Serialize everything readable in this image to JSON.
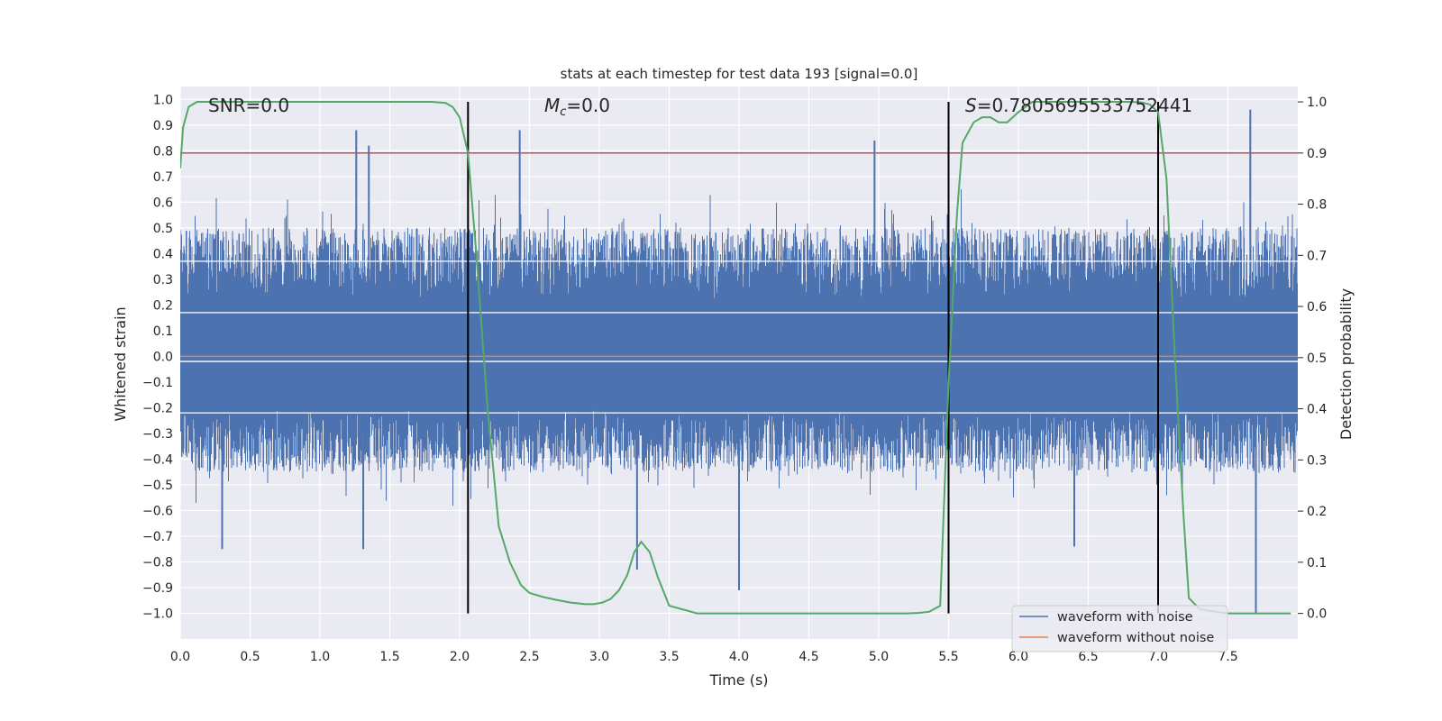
{
  "chart_data": {
    "type": "line",
    "title": "stats at each timestep for test data 193 [signal=0.0]",
    "xlabel": "Time (s)",
    "ylabel": "Whitened strain",
    "y2label": "Detection probability",
    "xlim": [
      0.0,
      8.0
    ],
    "ylim": [
      -1.1,
      1.05
    ],
    "y2lim": [
      -0.05,
      1.03
    ],
    "x_ticks": [
      0.0,
      0.5,
      1.0,
      1.5,
      2.0,
      2.5,
      3.0,
      3.5,
      4.0,
      4.5,
      5.0,
      5.5,
      6.0,
      6.5,
      7.0,
      7.5
    ],
    "x_tick_labels": [
      "0.0",
      "0.5",
      "1.0",
      "1.5",
      "2.0",
      "2.5",
      "3.0",
      "3.5",
      "4.0",
      "4.5",
      "5.0",
      "5.5",
      "6.0",
      "6.5",
      "7.0",
      "7.5"
    ],
    "y_ticks": [
      1.0,
      0.9,
      0.8,
      0.7,
      0.6,
      0.5,
      0.4,
      0.3,
      0.2,
      0.1,
      0.0,
      -0.1,
      -0.2,
      -0.3,
      -0.4,
      -0.5,
      -0.6,
      -0.7,
      -0.8,
      -0.9,
      -1.0
    ],
    "y_tick_labels": [
      "1.0",
      "0.9",
      "0.8",
      "0.7",
      "0.6",
      "0.5",
      "0.4",
      "0.3",
      "0.2",
      "0.1",
      "0.0",
      "−0.1",
      "−0.2",
      "−0.3",
      "−0.4",
      "−0.5",
      "−0.6",
      "−0.7",
      "−0.8",
      "−0.9",
      "−1.0"
    ],
    "y2_ticks": [
      1.0,
      0.9,
      0.8,
      0.7,
      0.6,
      0.5,
      0.4,
      0.3,
      0.2,
      0.1,
      0.0
    ],
    "y2_tick_labels": [
      "1.0",
      "0.9",
      "0.8",
      "0.7",
      "0.6",
      "0.5",
      "0.4",
      "0.3",
      "0.2",
      "0.1",
      "0.0"
    ],
    "grid": true,
    "annotations": {
      "snr": "SNR=0.0",
      "mc_symbol": "M",
      "mc_subscript": "c",
      "mc_value": "=0.0",
      "s_symbol": "S",
      "s_value": "=0.7805695533752441"
    },
    "noise": {
      "name": "waveform with noise",
      "color": "#4c72b0",
      "typical_range": [
        -0.45,
        0.5
      ],
      "spikes": [
        {
          "x": 1.26,
          "y": 0.88
        },
        {
          "x": 1.35,
          "y": 0.82
        },
        {
          "x": 2.43,
          "y": 0.88
        },
        {
          "x": 4.97,
          "y": 0.84
        },
        {
          "x": 7.66,
          "y": 0.96
        },
        {
          "x": 0.3,
          "y": -0.75
        },
        {
          "x": 1.31,
          "y": -0.75
        },
        {
          "x": 3.27,
          "y": -0.83
        },
        {
          "x": 4.0,
          "y": -0.91
        },
        {
          "x": 6.4,
          "y": -0.74
        },
        {
          "x": 7.7,
          "y": -1.0
        }
      ]
    },
    "clean_waveform": {
      "name": "waveform without noise",
      "color": "#dd8452",
      "value": 0.0
    },
    "threshold": {
      "color": "#c44e52",
      "value": 0.9
    },
    "event_markers": {
      "color": "#000000",
      "x": [
        2.06,
        5.5,
        7.0
      ]
    },
    "probability": {
      "color": "#55a868",
      "x": [
        0.0,
        0.02,
        0.06,
        0.12,
        0.25,
        0.5,
        1.0,
        1.5,
        1.8,
        1.9,
        1.95,
        2.0,
        2.06,
        2.12,
        2.2,
        2.28,
        2.36,
        2.44,
        2.5,
        2.6,
        2.7,
        2.8,
        2.9,
        2.96,
        3.02,
        3.08,
        3.14,
        3.2,
        3.25,
        3.3,
        3.36,
        3.42,
        3.5,
        3.7,
        4.0,
        4.5,
        5.0,
        5.2,
        5.28,
        5.36,
        5.44,
        5.5,
        5.56,
        5.6,
        5.68,
        5.74,
        5.8,
        5.86,
        5.92,
        6.0,
        6.1,
        6.3,
        6.6,
        6.8,
        6.88,
        6.94,
        7.0,
        7.06,
        7.12,
        7.18,
        7.22,
        7.3,
        7.5,
        7.8,
        7.95
      ],
      "y": [
        0.87,
        0.95,
        0.99,
        1.0,
        1.0,
        1.0,
        1.0,
        1.0,
        1.0,
        0.998,
        0.99,
        0.97,
        0.9,
        0.7,
        0.4,
        0.17,
        0.1,
        0.055,
        0.04,
        0.032,
        0.026,
        0.021,
        0.018,
        0.018,
        0.021,
        0.028,
        0.045,
        0.075,
        0.12,
        0.14,
        0.12,
        0.07,
        0.015,
        0.0,
        0.0,
        0.0,
        0.0,
        0.0,
        0.001,
        0.003,
        0.015,
        0.45,
        0.78,
        0.92,
        0.96,
        0.97,
        0.97,
        0.96,
        0.96,
        0.98,
        1.0,
        1.0,
        1.0,
        1.0,
        0.999,
        0.995,
        0.98,
        0.85,
        0.5,
        0.2,
        0.03,
        0.008,
        0.0,
        0.0,
        0.0
      ]
    },
    "legend": {
      "position": "lower-right",
      "entries": [
        {
          "label": "waveform with noise",
          "color": "#4c72b0"
        },
        {
          "label": "waveform without noise",
          "color": "#dd8452"
        }
      ]
    }
  }
}
